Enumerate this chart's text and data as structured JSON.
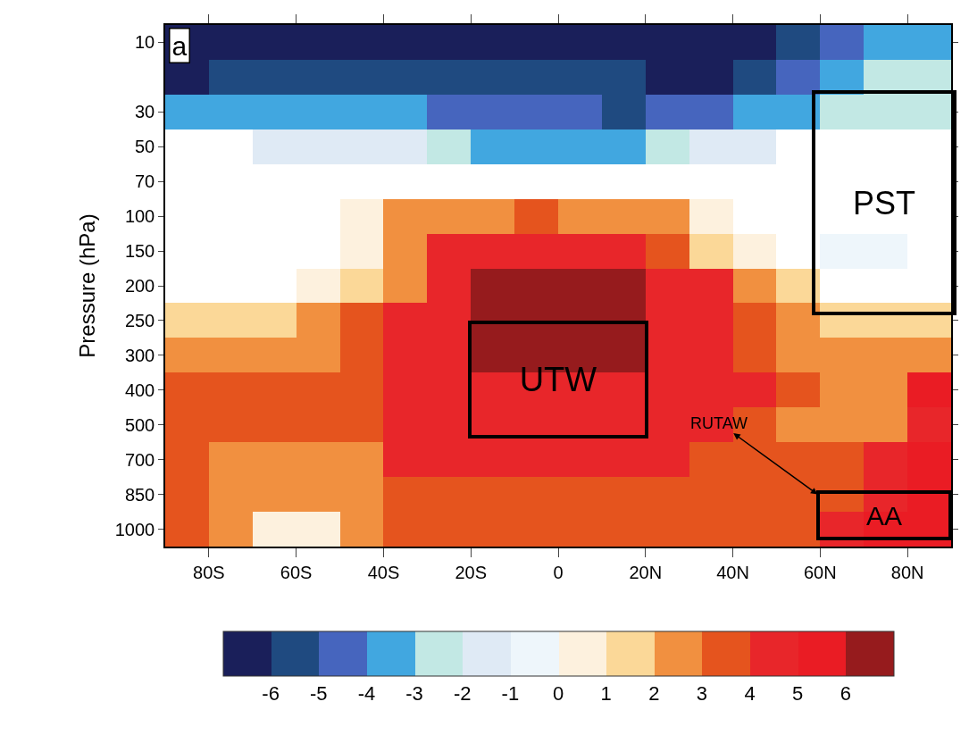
{
  "chart_data": {
    "type": "heatmap",
    "x": [
      -85,
      -75,
      -65,
      -55,
      -45,
      -35,
      -25,
      -15,
      -5,
      5,
      15,
      25,
      35,
      45,
      55,
      65,
      75,
      85
    ],
    "y_categories": [
      "10",
      null,
      "30",
      "50",
      "70",
      "100",
      "150",
      "200",
      "250",
      "300",
      "400",
      "500",
      "700",
      "850",
      "1000"
    ],
    "cells": [
      [
        -6.5,
        -6.5,
        -6.5,
        -6.5,
        -6.5,
        -6.5,
        -6.5,
        -6.5,
        -6.5,
        -6.5,
        -6.5,
        -6.5,
        -6.5,
        -6.5,
        -5.5,
        -4.5,
        -3.5,
        -3.5
      ],
      [
        -6.5,
        -5.5,
        -5.5,
        -5.5,
        -5.5,
        -5.5,
        -5.5,
        -5.5,
        -5.5,
        -5.5,
        -5.5,
        -6.5,
        -6.5,
        -5.5,
        -4.5,
        -3.5,
        -2.5,
        -2.5
      ],
      [
        -3.5,
        -3.5,
        -3.5,
        -3.5,
        -3.5,
        -3.5,
        -4.5,
        -4.5,
        -4.5,
        -4.5,
        -5.5,
        -4.5,
        -4.5,
        -3.5,
        -3.5,
        -2.5,
        -2.5,
        -2.5
      ],
      [
        null,
        null,
        -1.5,
        -1.5,
        -1.5,
        -1.5,
        -2.5,
        -3.5,
        -3.5,
        -3.5,
        -3.5,
        -2.5,
        -1.5,
        -1.5,
        null,
        null,
        null,
        null
      ],
      [
        null,
        null,
        null,
        null,
        null,
        null,
        null,
        null,
        null,
        null,
        null,
        null,
        null,
        null,
        null,
        null,
        null,
        null
      ],
      [
        null,
        null,
        null,
        null,
        0.5,
        2.5,
        2.5,
        2.5,
        3.5,
        2.5,
        2.5,
        2.5,
        0.5,
        null,
        null,
        null,
        null,
        null
      ],
      [
        null,
        null,
        null,
        null,
        0.5,
        2.5,
        4.5,
        4.5,
        4.5,
        4.5,
        4.5,
        3.5,
        1.5,
        0.5,
        null,
        -0.5,
        -0.5,
        null
      ],
      [
        null,
        null,
        null,
        0.5,
        1.5,
        2.5,
        4.5,
        6.5,
        6.5,
        6.5,
        6.5,
        4.5,
        4.5,
        2.5,
        1.5,
        null,
        null,
        null
      ],
      [
        1.5,
        1.5,
        1.5,
        2.5,
        3.5,
        4.5,
        4.5,
        6.5,
        6.5,
        6.5,
        6.5,
        4.5,
        4.5,
        3.5,
        2.5,
        1.5,
        1.5,
        1.5
      ],
      [
        2.5,
        2.5,
        2.5,
        2.5,
        3.5,
        4.5,
        4.5,
        6.5,
        6.5,
        6.5,
        6.5,
        4.5,
        4.5,
        3.5,
        2.5,
        2.5,
        2.5,
        2.5
      ],
      [
        3.5,
        3.5,
        3.5,
        3.5,
        3.5,
        4.5,
        4.5,
        4.5,
        4.5,
        4.5,
        4.5,
        4.5,
        4.5,
        4.5,
        3.5,
        2.5,
        2.5,
        5.5
      ],
      [
        3.5,
        3.5,
        3.5,
        3.5,
        3.5,
        4.5,
        4.5,
        4.5,
        4.5,
        4.5,
        4.5,
        4.5,
        4.5,
        3.5,
        2.5,
        2.5,
        2.5,
        4.5
      ],
      [
        3.5,
        2.5,
        2.5,
        2.5,
        2.5,
        4.5,
        4.5,
        4.5,
        4.5,
        4.5,
        4.5,
        4.5,
        3.5,
        3.5,
        3.5,
        3.5,
        4.5,
        5.5
      ],
      [
        3.5,
        2.5,
        2.5,
        2.5,
        2.5,
        3.5,
        3.5,
        3.5,
        3.5,
        3.5,
        3.5,
        3.5,
        3.5,
        3.5,
        3.5,
        3.5,
        4.5,
        5.5
      ],
      [
        3.5,
        2.5,
        0.5,
        0.5,
        2.5,
        3.5,
        3.5,
        3.5,
        3.5,
        3.5,
        3.5,
        3.5,
        3.5,
        3.5,
        3.5,
        4.5,
        5.5,
        5.5
      ]
    ],
    "colors": [
      "#1a1f5a",
      "#1f4a80",
      "#4665be",
      "#41a7e0",
      "#c2e8e4",
      "#dfeaf5",
      "#eef6fb",
      "#fdf1de",
      "#fbd898",
      "#f19040",
      "#e5541e",
      "#e8262a",
      "#ea1c24",
      "#961b1d"
    ],
    "clim": [
      -7,
      7
    ],
    "cticks": [
      -6,
      -5,
      -4,
      -3,
      -2,
      -1,
      0,
      1,
      2,
      3,
      4,
      5,
      6
    ],
    "xlim": [
      -90,
      90
    ],
    "xticks": [
      {
        "value": -80,
        "label": "80S"
      },
      {
        "value": -60,
        "label": "60S"
      },
      {
        "value": -40,
        "label": "40S"
      },
      {
        "value": -20,
        "label": "20S"
      },
      0,
      {
        "value": 20,
        "label": "20N"
      },
      {
        "value": 40,
        "label": "40N"
      },
      {
        "value": 60,
        "label": "60N"
      },
      {
        "value": 80,
        "label": "80N"
      }
    ],
    "ylabel": "Pressure (hPa)",
    "annotations": [
      "a",
      "UTW",
      "PST",
      "AA",
      "RUTAW"
    ]
  }
}
